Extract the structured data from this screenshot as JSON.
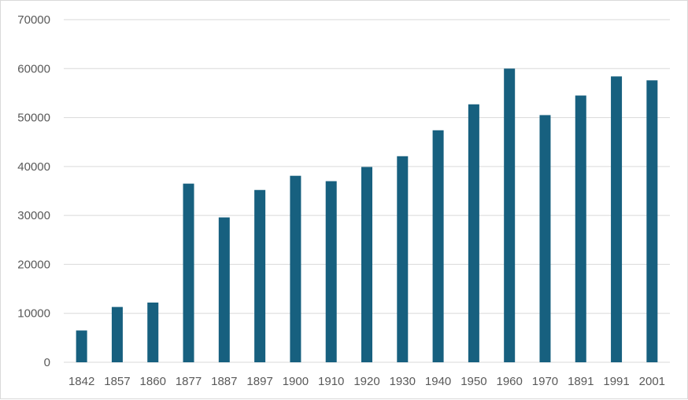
{
  "chart_data": {
    "type": "bar",
    "title": "",
    "xlabel": "",
    "ylabel": "",
    "categories": [
      "1842",
      "1857",
      "1860",
      "1877",
      "1887",
      "1897",
      "1900",
      "1910",
      "1920",
      "1930",
      "1940",
      "1950",
      "1960",
      "1970",
      "1891",
      "1991",
      "2001"
    ],
    "values": [
      6500,
      11300,
      12200,
      36500,
      29600,
      35200,
      38100,
      37000,
      39900,
      42100,
      47400,
      52700,
      60000,
      50500,
      54500,
      58400,
      57600
    ],
    "ylim": [
      0,
      70000
    ],
    "yticks": [
      "0",
      "10000",
      "20000",
      "30000",
      "40000",
      "50000",
      "60000",
      "70000"
    ],
    "grid": true,
    "legend": "none",
    "colors": {
      "bar": "#17607f",
      "grid": "#d9d9d9",
      "text": "#595959"
    }
  }
}
